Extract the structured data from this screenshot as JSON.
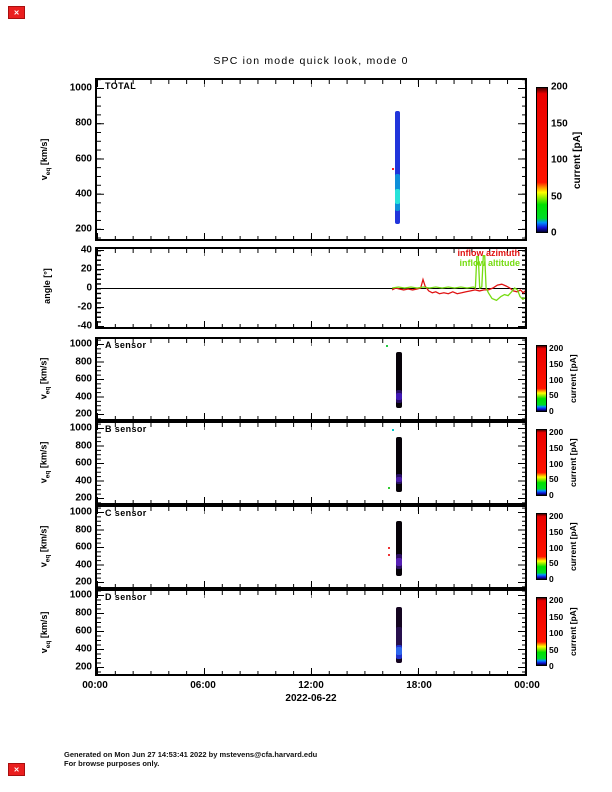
{
  "page": {
    "title": "SPC ion mode quick look, mode 0",
    "date_label": "2022-06-22",
    "x_ticks": [
      "00:00",
      "06:00",
      "12:00",
      "18:00",
      "00:00"
    ]
  },
  "axes": {
    "vticks": [
      "1000",
      "800",
      "600",
      "400",
      "200"
    ],
    "angle_ticks": [
      "40",
      "20",
      "0",
      "-20",
      "-40"
    ],
    "vel_label_main": "v",
    "vel_label_sub": "eq",
    "vel_label_unit": " [km/s]",
    "angle_label": "angle [°]"
  },
  "panels": {
    "total": {
      "label": "TOTAL"
    },
    "a": {
      "label": "A sensor"
    },
    "b": {
      "label": "B sensor"
    },
    "c": {
      "label": "C sensor"
    },
    "d": {
      "label": "D sensor"
    }
  },
  "legend": {
    "azimuth": {
      "label": "inflow azimuth",
      "color": "#e01212"
    },
    "altitude": {
      "label": "inflow altitude",
      "color": "#76dc12"
    }
  },
  "colorbar": {
    "label": "current [pA]",
    "ticks": [
      "200",
      "150",
      "100",
      "50",
      "0"
    ]
  },
  "footer": {
    "line1": "Generated on Mon Jun 27 14:53:41 2022 by mstevens@cfa.harvard.edu",
    "line2": "For browse purposes only."
  },
  "icons": {
    "broken_image": "✕"
  },
  "chart_data": {
    "type": "multi-panel time series: 5 velocity spectrogram heatmaps + 1 line panel",
    "title": "SPC ion mode quick look, mode 0",
    "x_axis": {
      "date": "2022-06-22",
      "tick_labels": [
        "00:00",
        "06:00",
        "12:00",
        "18:00",
        "00:00"
      ],
      "range_hours": [
        0,
        24
      ],
      "minor_tick_hours": 1
    },
    "colorbar": {
      "label": "current [pA]",
      "range": [
        0,
        200
      ],
      "tick_values": [
        0,
        50,
        100,
        150,
        200
      ],
      "colormap_stops_pA": [
        [
          0,
          "#000030"
        ],
        [
          6,
          "#1111d8"
        ],
        [
          13,
          "#0090ff"
        ],
        [
          19,
          "#00dc28"
        ],
        [
          38,
          "#00e000"
        ],
        [
          48,
          "#9aee00"
        ],
        [
          55,
          "#ffff00"
        ],
        [
          62,
          "#ff9000"
        ],
        [
          69,
          "#ff1400"
        ],
        [
          192,
          "#ea0000"
        ],
        [
          200,
          "#4a0000"
        ]
      ]
    },
    "panels": [
      {
        "id": "total",
        "title": "TOTAL",
        "type": "heatmap",
        "ylabel": "v_eq [km/s]",
        "ylim": [
          130,
          1060
        ],
        "yticks": [
          200,
          400,
          600,
          800,
          1000
        ]
      },
      {
        "id": "angle",
        "title": "",
        "type": "line",
        "ylabel": "angle [deg]",
        "ylim": [
          -45,
          45
        ],
        "yticks": [
          -40,
          -20,
          0,
          20,
          40
        ]
      },
      {
        "id": "a",
        "title": "A sensor",
        "type": "heatmap",
        "ylabel": "v_eq [km/s]",
        "ylim": [
          140,
          1060
        ],
        "yticks": [
          200,
          400,
          600,
          800,
          1000
        ]
      },
      {
        "id": "b",
        "title": "B sensor",
        "type": "heatmap",
        "ylabel": "v_eq [km/s]",
        "ylim": [
          140,
          1060
        ],
        "yticks": [
          200,
          400,
          600,
          800,
          1000
        ]
      },
      {
        "id": "c",
        "title": "C sensor",
        "type": "heatmap",
        "ylabel": "v_eq [km/s]",
        "ylim": [
          140,
          1060
        ],
        "yticks": [
          200,
          400,
          600,
          800,
          1000
        ]
      },
      {
        "id": "d",
        "title": "D sensor",
        "type": "heatmap",
        "ylabel": "v_eq [km/s]",
        "ylim": [
          140,
          1060
        ],
        "yticks": [
          200,
          400,
          600,
          800,
          1000
        ]
      }
    ],
    "burst": {
      "start_hour": 16.72,
      "end_hour": 17.0,
      "description": "single short measurement burst near 16:50 UT on 2022-06-22"
    },
    "streaks": [
      {
        "panel": "total",
        "t0": 16.72,
        "t1": 17.0,
        "base": {
          "v0": 870,
          "v1": 230,
          "color": "#2135db"
        },
        "blobs": [
          {
            "v0": 510,
            "v1": 300,
            "color": "#0b9fd8",
            "op": 0.85
          },
          {
            "v0": 430,
            "v1": 345,
            "color": "#2ae8da",
            "op": 0.95
          }
        ]
      },
      {
        "panel": "a",
        "t0": 16.75,
        "t1": 17.0,
        "base": {
          "v0": 905,
          "v1": 270,
          "color": "#060208"
        },
        "blobs": [
          {
            "v0": 480,
            "v1": 330,
            "color": "#2c0f6e",
            "op": 0.9
          },
          {
            "v0": 435,
            "v1": 360,
            "color": "#4a1ed2",
            "op": 0.75
          }
        ]
      },
      {
        "panel": "b",
        "t0": 16.75,
        "t1": 17.0,
        "base": {
          "v0": 895,
          "v1": 265,
          "color": "#060208"
        },
        "blobs": [
          {
            "v0": 470,
            "v1": 355,
            "color": "#2c0f6e",
            "op": 0.9
          },
          {
            "v0": 445,
            "v1": 385,
            "color": "#5a22c8",
            "op": 0.7
          }
        ]
      },
      {
        "panel": "c",
        "t0": 16.75,
        "t1": 17.0,
        "base": {
          "v0": 900,
          "v1": 265,
          "color": "#060208"
        },
        "blobs": [
          {
            "v0": 515,
            "v1": 350,
            "color": "#32106e",
            "op": 0.9
          },
          {
            "v0": 470,
            "v1": 385,
            "color": "#6a28d8",
            "op": 0.7
          }
        ]
      },
      {
        "panel": "d",
        "t0": 16.75,
        "t1": 17.0,
        "base": {
          "v0": 865,
          "v1": 245,
          "color": "#140520"
        },
        "blobs": [
          {
            "v0": 640,
            "v1": 290,
            "color": "#2a1252",
            "op": 0.9
          },
          {
            "v0": 450,
            "v1": 295,
            "color": "#2135db",
            "op": 0.9
          },
          {
            "v0": 425,
            "v1": 330,
            "color": "#2f72f2",
            "op": 0.85
          }
        ]
      }
    ],
    "specks": [
      {
        "panel": "total",
        "t": 16.55,
        "v": 545,
        "color": "#ff2222"
      },
      {
        "panel": "a",
        "t": 16.2,
        "v": 990,
        "color": "#22cc44"
      },
      {
        "panel": "b",
        "t": 16.55,
        "v": 990,
        "color": "#00cccc"
      },
      {
        "panel": "b",
        "t": 16.3,
        "v": 330,
        "color": "#33cc33"
      },
      {
        "panel": "c",
        "t": 16.3,
        "v": 600,
        "color": "#ee3333"
      },
      {
        "panel": "c",
        "t": 16.3,
        "v": 520,
        "color": "#ee3333"
      }
    ],
    "angle_series": [
      {
        "name": "inflow azimuth",
        "color": "#e01212",
        "points": [
          [
            16.55,
            -2
          ],
          [
            16.75,
            0
          ],
          [
            16.95,
            -1
          ],
          [
            17.2,
            -2
          ],
          [
            17.45,
            -1
          ],
          [
            17.7,
            -2
          ],
          [
            17.95,
            -1
          ],
          [
            18.15,
            0
          ],
          [
            18.28,
            9
          ],
          [
            18.4,
            2
          ],
          [
            18.6,
            -3
          ],
          [
            18.8,
            -5
          ],
          [
            19.0,
            -4
          ],
          [
            19.2,
            -6
          ],
          [
            19.45,
            -5
          ],
          [
            19.7,
            -6
          ],
          [
            19.95,
            -4
          ],
          [
            20.2,
            -6
          ],
          [
            20.45,
            -5
          ],
          [
            20.7,
            -4
          ],
          [
            20.95,
            -3
          ],
          [
            21.2,
            -2
          ],
          [
            21.45,
            -3
          ],
          [
            21.7,
            -2
          ],
          [
            21.95,
            -2
          ],
          [
            22.2,
            0
          ],
          [
            22.45,
            3
          ],
          [
            22.7,
            4
          ],
          [
            22.95,
            2
          ],
          [
            23.15,
            0
          ],
          [
            23.35,
            -3
          ],
          [
            23.55,
            -4
          ],
          [
            23.75,
            -2
          ],
          [
            23.9,
            -5
          ],
          [
            24.0,
            -3
          ]
        ]
      },
      {
        "name": "inflow altitude",
        "color": "#76dc12",
        "points": [
          [
            16.55,
            0
          ],
          [
            16.9,
            1
          ],
          [
            17.25,
            0
          ],
          [
            17.6,
            1
          ],
          [
            17.95,
            0
          ],
          [
            18.3,
            1
          ],
          [
            18.65,
            0
          ],
          [
            19.0,
            1
          ],
          [
            19.35,
            0
          ],
          [
            19.7,
            1
          ],
          [
            20.05,
            0
          ],
          [
            20.4,
            1
          ],
          [
            20.75,
            0
          ],
          [
            21.1,
            1
          ],
          [
            21.22,
            0
          ],
          [
            21.3,
            33
          ],
          [
            21.38,
            33
          ],
          [
            21.46,
            0
          ],
          [
            21.58,
            1
          ],
          [
            21.66,
            34
          ],
          [
            21.74,
            34
          ],
          [
            21.82,
            0
          ],
          [
            21.95,
            -5
          ],
          [
            22.15,
            -11
          ],
          [
            22.4,
            -13
          ],
          [
            22.65,
            -9
          ],
          [
            22.85,
            -7
          ],
          [
            23.05,
            -8
          ],
          [
            23.25,
            -4
          ],
          [
            23.42,
            0
          ],
          [
            23.58,
            -2
          ],
          [
            23.72,
            -9
          ],
          [
            23.88,
            -12
          ],
          [
            24.0,
            -10
          ]
        ]
      }
    ]
  }
}
